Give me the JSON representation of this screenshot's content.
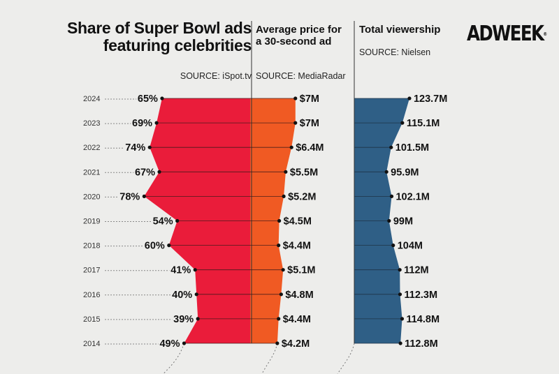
{
  "brand": {
    "logo": "ADWEEK",
    "tm": "®"
  },
  "panels": {
    "celebrities": {
      "title": "Share of Super Bowl ads featuring celebrities",
      "source": "SOURCE: iSpot.tv"
    },
    "price": {
      "title": "Average price for a 30-second ad",
      "source": "SOURCE: MediaRadar"
    },
    "viewership": {
      "title": "Total viewership",
      "source": "SOURCE: Nielsen"
    }
  },
  "colors": {
    "celeb": "#ea1c3a",
    "price": "#f05a23",
    "viewership": "#2f5f86",
    "background": "#ededeb"
  },
  "chart_data": {
    "type": "area",
    "categories": [
      "2024",
      "2023",
      "2022",
      "2021",
      "2020",
      "2019",
      "2018",
      "2017",
      "2016",
      "2015",
      "2014"
    ],
    "series": [
      {
        "name": "Share of Super Bowl ads featuring celebrities",
        "unit": "%",
        "values": [
          65,
          69,
          74,
          67,
          78,
          54,
          60,
          41,
          40,
          39,
          49
        ],
        "labels": [
          "65%",
          "69%",
          "74%",
          "67%",
          "78%",
          "54%",
          "60%",
          "41%",
          "40%",
          "39%",
          "49%"
        ]
      },
      {
        "name": "Average price for a 30-second ad",
        "unit": "$M",
        "values": [
          7,
          7,
          6.4,
          5.5,
          5.2,
          4.5,
          4.4,
          5.1,
          4.8,
          4.4,
          4.2
        ],
        "labels": [
          "$7M",
          "$7M",
          "$6.4M",
          "$5.5M",
          "$5.2M",
          "$4.5M",
          "$4.4M",
          "$5.1M",
          "$4.8M",
          "$4.4M",
          "$4.2M"
        ]
      },
      {
        "name": "Total viewership",
        "unit": "M",
        "values": [
          123.7,
          115.1,
          101.5,
          95.9,
          102.1,
          99,
          104,
          112,
          112.3,
          114.8,
          112.8
        ],
        "labels": [
          "123.7M",
          "115.1M",
          "101.5M",
          "95.9M",
          "102.1M",
          "99M",
          "104M",
          "112M",
          "112.3M",
          "114.8M",
          "112.8M"
        ]
      }
    ]
  }
}
